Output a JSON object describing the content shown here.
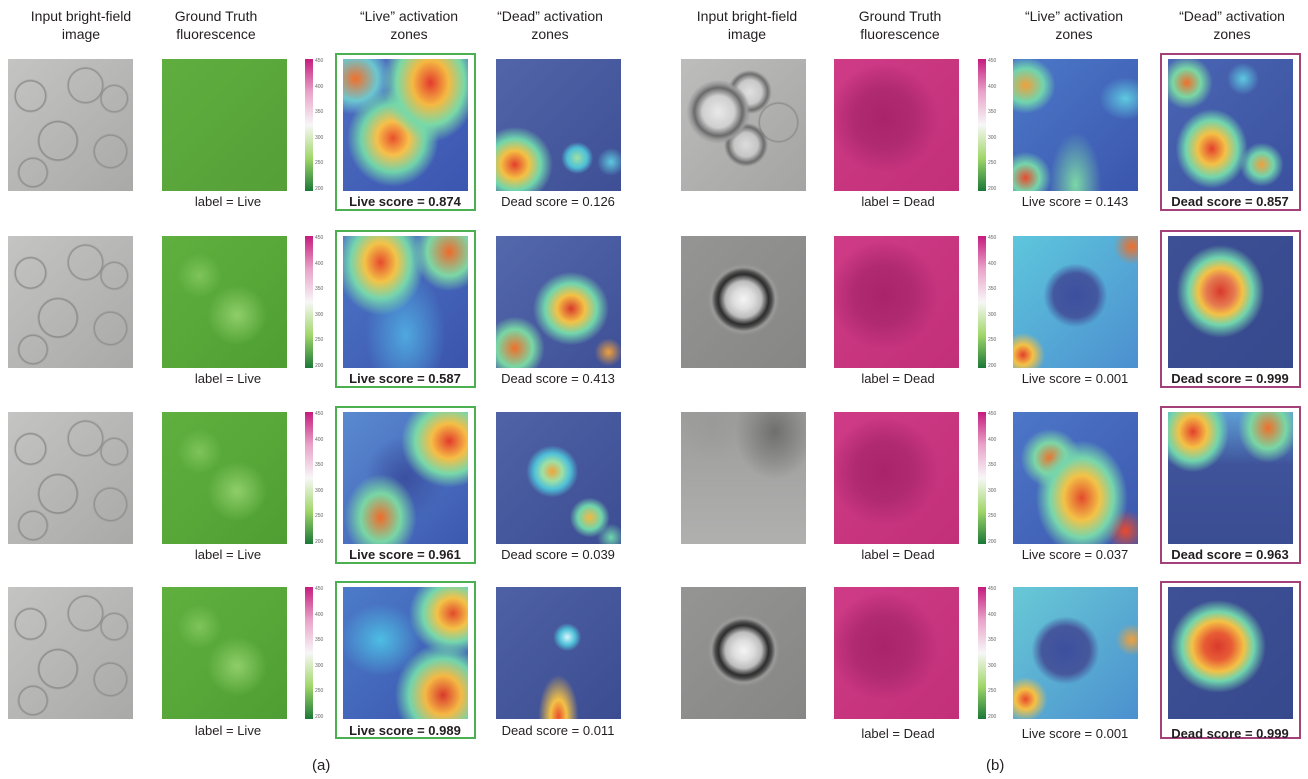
{
  "headers": {
    "a": [
      [
        "Input bright-field",
        "image"
      ],
      [
        "Ground Truth",
        "fluorescence"
      ],
      [
        "“Live” activation",
        "zones"
      ],
      [
        "“Dead” activation",
        "zones"
      ]
    ],
    "b": [
      [
        "Input bright-field",
        "image"
      ],
      [
        "Ground Truth",
        "fluorescence"
      ],
      [
        "“Live” activation",
        "zones"
      ],
      [
        "“Dead” activation",
        "zones"
      ]
    ]
  },
  "colorbar_ticks": [
    "450",
    "400",
    "350",
    "300",
    "250",
    "200"
  ],
  "panel_a": {
    "rows": [
      {
        "label": "label = Live",
        "live_score": "Live score = 0.874",
        "dead_score": "Dead score = 0.126"
      },
      {
        "label": "label = Live",
        "live_score": "Live score = 0.587",
        "dead_score": "Dead score = 0.413"
      },
      {
        "label": "label = Live",
        "live_score": "Live score = 0.961",
        "dead_score": "Dead score = 0.039"
      },
      {
        "label": "label = Live",
        "live_score": "Live score = 0.989",
        "dead_score": "Dead score = 0.011"
      }
    ],
    "sublabel": "(a)"
  },
  "panel_b": {
    "rows": [
      {
        "label": "label = Dead",
        "live_score": "Live score = 0.143",
        "dead_score": "Dead score = 0.857"
      },
      {
        "label": "label = Dead",
        "live_score": "Live score = 0.001",
        "dead_score": "Dead score = 0.999"
      },
      {
        "label": "label = Dead",
        "live_score": "Live score = 0.037",
        "dead_score": "Dead score = 0.963"
      },
      {
        "label": "label = Dead",
        "live_score": "Live score = 0.001",
        "dead_score": "Dead score = 0.999"
      }
    ],
    "sublabel": "(b)"
  },
  "colors": {
    "live_frame": "#4caf50",
    "dead_frame": "#a4407a",
    "fluor_live": "#5aab3b",
    "fluor_dead": "#c8347d"
  }
}
